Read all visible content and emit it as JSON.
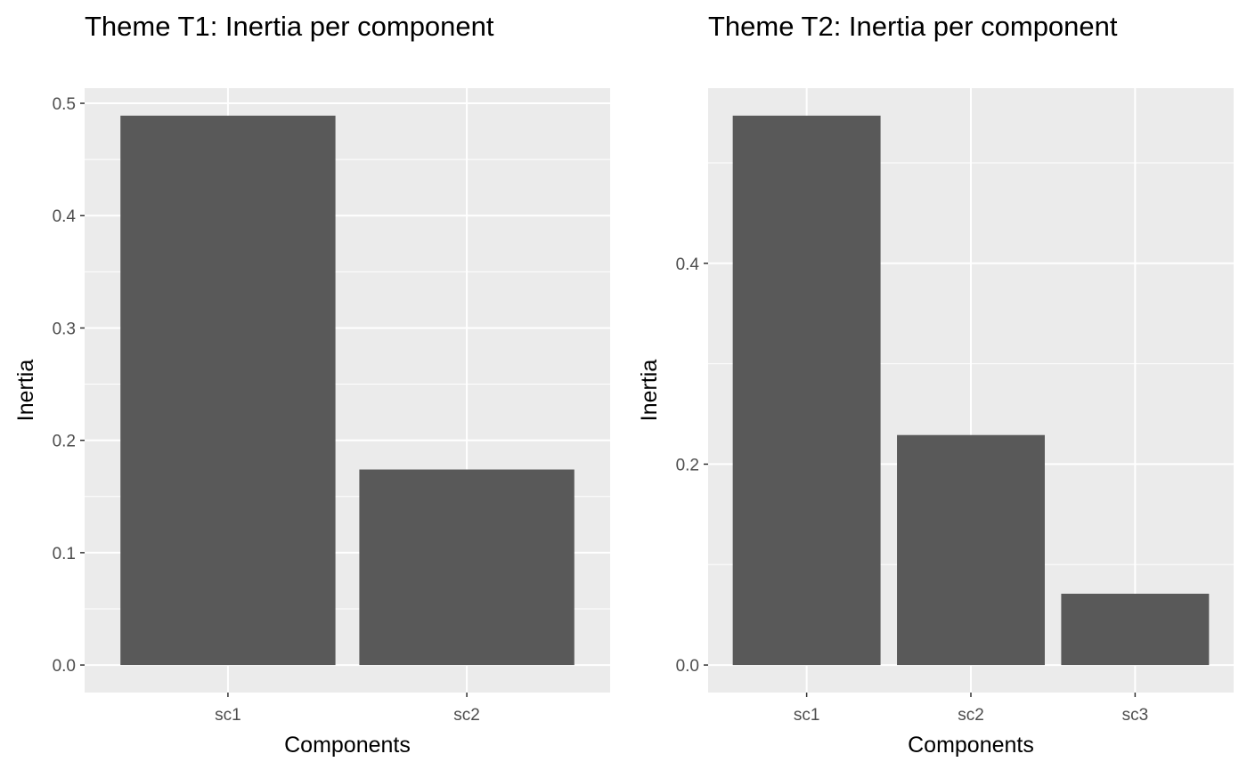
{
  "chart_data": [
    {
      "type": "bar",
      "title": "Theme T1: Inertia per component",
      "xlabel": "Components",
      "ylabel": "Inertia",
      "categories": [
        "sc1",
        "sc2"
      ],
      "values": [
        0.489,
        0.174
      ],
      "ylim": [
        -0.0245,
        0.5135
      ],
      "yticks": [
        "0.0",
        "0.1",
        "0.2",
        "0.3",
        "0.4",
        "0.5"
      ],
      "ytick_values": [
        0.0,
        0.1,
        0.2,
        0.3,
        0.4,
        0.5
      ],
      "grid": true,
      "legend": "none"
    },
    {
      "type": "bar",
      "title": "Theme T2: Inertia per component",
      "xlabel": "Components",
      "ylabel": "Inertia",
      "categories": [
        "sc1",
        "sc2",
        "sc3"
      ],
      "values": [
        0.547,
        0.229,
        0.071
      ],
      "ylim": [
        -0.0274,
        0.5744
      ],
      "yticks": [
        "0.0",
        "0.2",
        "0.4"
      ],
      "ytick_values": [
        0.0,
        0.2,
        0.4
      ],
      "grid": true,
      "legend": "none"
    }
  ],
  "colors": {
    "panel_background": "#ebebeb",
    "grid_major": "#ffffff",
    "bar_fill": "#595959",
    "tick_text": "#4d4d4d",
    "tick_mark": "#333333",
    "title_text": "#000000"
  }
}
